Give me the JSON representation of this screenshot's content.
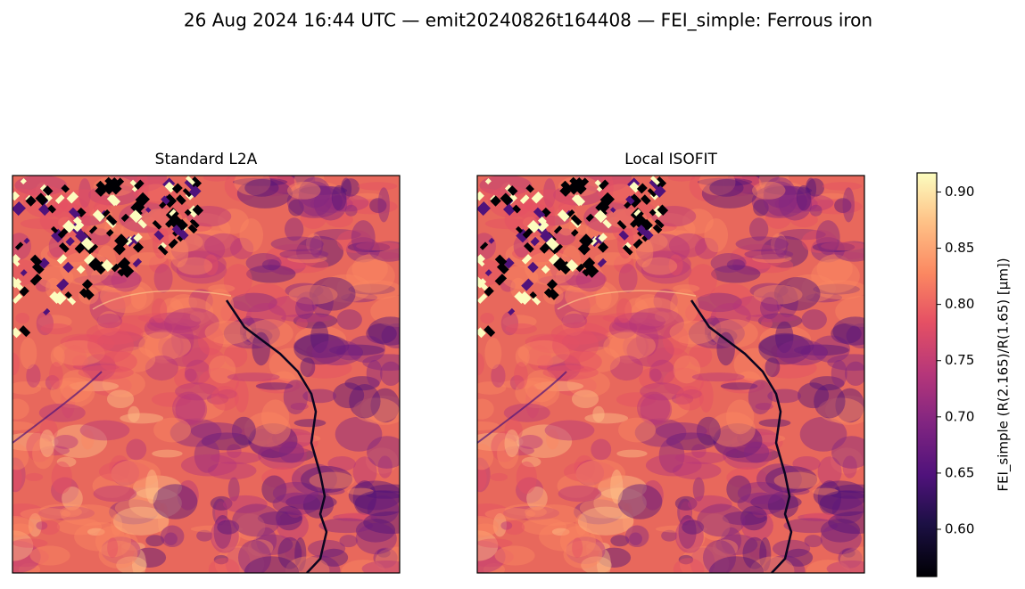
{
  "chart_data": {
    "type": "image",
    "title": "26 Aug 2024 16:44 UTC — emit20240826t164408 — FEI_simple: Ferrous iron",
    "panels": [
      {
        "title": "Standard L2A"
      },
      {
        "title": "Local ISOFIT"
      }
    ],
    "colormap": "magma",
    "colorbar": {
      "label": "FEI_simple  (R(2.165)/R(1.65)  [µm])",
      "lim": [
        0.558,
        0.917
      ],
      "ticks": [
        {
          "value": 0.6,
          "label": "0.60"
        },
        {
          "value": 0.65,
          "label": "0.65"
        },
        {
          "value": 0.7,
          "label": "0.70"
        },
        {
          "value": 0.75,
          "label": "0.75"
        },
        {
          "value": 0.8,
          "label": "0.80"
        },
        {
          "value": 0.85,
          "label": "0.85"
        },
        {
          "value": 0.9,
          "label": "0.90"
        }
      ]
    }
  }
}
